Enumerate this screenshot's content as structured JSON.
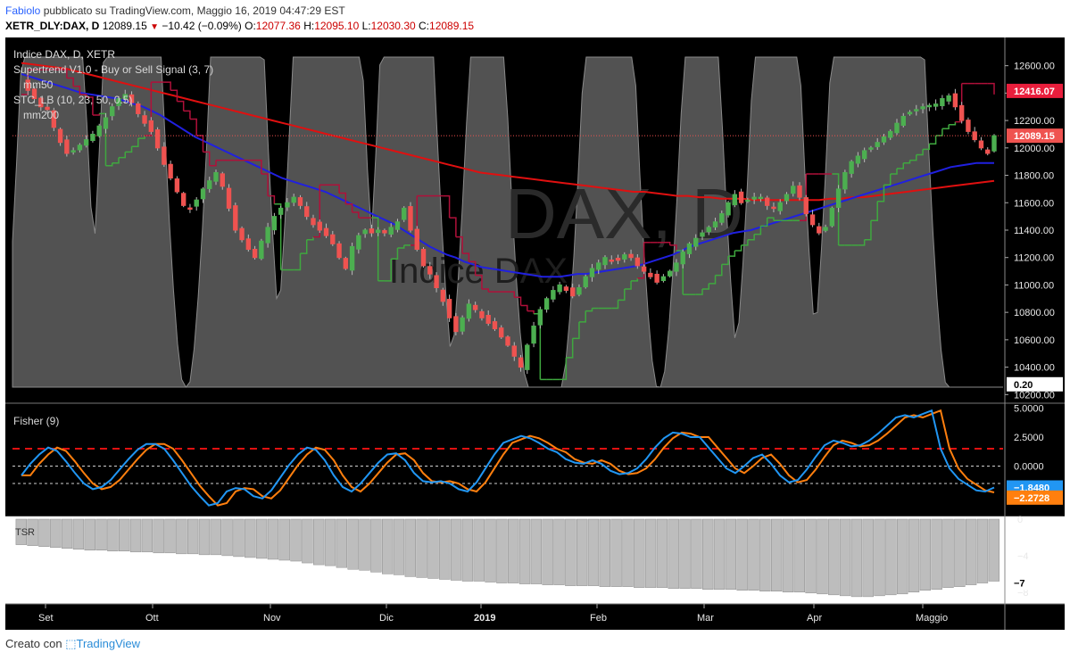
{
  "header": {
    "author": "Fabiolo",
    "published": "pubblicato su TradingView.com, Maggio 16, 2019 04:47:29 EST",
    "symbol": "XETR_DLY:DAX, D",
    "last": "12089.15",
    "change": "−10.42 (−0.09%)",
    "o_label": "O:",
    "o_value": "12077.36",
    "h_label": "H:",
    "h_value": "12095.10",
    "l_label": "L:",
    "l_value": "12030.30",
    "c_label": "C:",
    "c_value": "12089.15"
  },
  "legend": {
    "title": "Indice DAX, D, XETR",
    "supertrend": "Supertrend V1.0 - Buy or Sell Signal (3, 7)",
    "mm50": "mm50",
    "stc": "STC_LB (10, 23, 50, 0.5)",
    "mm200": "mm200",
    "fisher": "Fisher (9)",
    "tsr": "TSR"
  },
  "watermark": {
    "symbol": "DAX, D",
    "name": "Indice DAX"
  },
  "footer": {
    "created": "Creato con",
    "brand": "TradingView"
  },
  "colors": {
    "up": "#4caf50",
    "down": "#ef5350",
    "mm50": "#2020e0",
    "mm200": "#e01010",
    "supertrend_down": "#b0103a",
    "supertrend_up": "#3fa83f",
    "stc": "#5a5a5a",
    "fisher": "#2196f3",
    "fisher_trigger": "#ff7f0e",
    "tsr": "#bdbdbd"
  },
  "chart_data": [
    {
      "type": "candlestick",
      "title": "Indice DAX, D, XETR",
      "x_ticks": [
        "Set",
        "Ott",
        "Nov",
        "Dic",
        "2019",
        "Feb",
        "Mar",
        "Apr",
        "Maggio"
      ],
      "y_ticks": [
        12600,
        12400,
        12200,
        12000,
        11800,
        11600,
        11400,
        11200,
        11000,
        10800,
        10600,
        10400,
        10200
      ],
      "ylim": [
        10150,
        12780
      ],
      "last_price_label": "12089.15",
      "upper_label": "12416.07",
      "stc_value_label": "0.20",
      "ohlc_last": {
        "open": 12077.36,
        "high": 12095.1,
        "low": 12030.3,
        "close": 12089.15
      },
      "close_series": [
        12480,
        12420,
        12360,
        12300,
        12280,
        12150,
        12040,
        11960,
        11980,
        12020,
        12060,
        12100,
        12160,
        12220,
        12300,
        12360,
        12390,
        12330,
        12250,
        12180,
        12120,
        12000,
        11880,
        11780,
        11680,
        11580,
        11560,
        11620,
        11700,
        11760,
        11820,
        11720,
        11560,
        11400,
        11330,
        11260,
        11200,
        11320,
        11420,
        11500,
        11560,
        11600,
        11640,
        11580,
        11500,
        11440,
        11400,
        11360,
        11300,
        11200,
        11120,
        11280,
        11360,
        11400,
        11380,
        11400,
        11380,
        11420,
        11460,
        11560,
        11400,
        11260,
        11140,
        11080,
        10980,
        10880,
        10760,
        10660,
        10760,
        10860,
        10820,
        10760,
        10720,
        10680,
        10620,
        10560,
        10480,
        10400,
        10560,
        10700,
        10820,
        10900,
        10960,
        11000,
        10960,
        10920,
        10980,
        11060,
        11120,
        11160,
        11200,
        11180,
        11180,
        11220,
        11200,
        11140,
        11100,
        11060,
        11020,
        11060,
        11100,
        11160,
        11240,
        11300,
        11340,
        11380,
        11420,
        11460,
        11520,
        11600,
        11660,
        11600,
        11620,
        11640,
        11640,
        11580,
        11560,
        11600,
        11660,
        11720,
        11640,
        11520,
        11440,
        11380,
        11420,
        11560,
        11700,
        11820,
        11900,
        11940,
        11980,
        12000,
        12040,
        12080,
        12120,
        12180,
        12230,
        12260,
        12280,
        12300,
        12310,
        12320,
        12360,
        12380,
        12300,
        12200,
        12120,
        12060,
        12000,
        11960,
        12089.15
      ],
      "series": [
        {
          "name": "mm50",
          "values": [
            12540,
            12520,
            12500,
            12480,
            12460,
            12440,
            12420,
            12400,
            12390,
            12380,
            12370,
            12360,
            12340,
            12320,
            12300,
            12270,
            12240,
            12200,
            12160,
            12120,
            12080,
            12050,
            12020,
            11990,
            11960,
            11930,
            11900,
            11870,
            11840,
            11810,
            11780,
            11760,
            11740,
            11720,
            11700,
            11680,
            11650,
            11620,
            11590,
            11560,
            11530,
            11500,
            11470,
            11440,
            11400,
            11360,
            11320,
            11280,
            11250,
            11220,
            11200,
            11170,
            11150,
            11130,
            11120,
            11110,
            11100,
            11090,
            11080,
            11070,
            11060,
            11060,
            11060,
            11070,
            11080,
            11080,
            11090,
            11100,
            11110,
            11120,
            11130,
            11140,
            11160,
            11180,
            11200,
            11220,
            11250,
            11280,
            11300,
            11320,
            11340,
            11360,
            11380,
            11390,
            11400,
            11420,
            11440,
            11460,
            11480,
            11500,
            11520,
            11540,
            11560,
            11580,
            11600,
            11620,
            11640,
            11660,
            11680,
            11700,
            11720,
            11740,
            11760,
            11780,
            11800,
            11820,
            11840,
            11860,
            11870,
            11880,
            11890,
            11890,
            11890
          ]
        },
        {
          "name": "mm200",
          "values": [
            12620,
            12610,
            12600,
            12590,
            12580,
            12560,
            12540,
            12520,
            12500,
            12480,
            12460,
            12440,
            12420,
            12400,
            12380,
            12360,
            12340,
            12320,
            12300,
            12280,
            12260,
            12240,
            12220,
            12200,
            12180,
            12160,
            12140,
            12120,
            12100,
            12080,
            12060,
            12040,
            12020,
            12000,
            11980,
            11960,
            11940,
            11920,
            11900,
            11880,
            11860,
            11840,
            11820,
            11810,
            11800,
            11790,
            11780,
            11770,
            11760,
            11750,
            11740,
            11730,
            11720,
            11710,
            11700,
            11690,
            11680,
            11680,
            11670,
            11660,
            11650,
            11650,
            11640,
            11640,
            11630,
            11630,
            11630,
            11620,
            11620,
            11620,
            11620,
            11620,
            11620,
            11620,
            11630,
            11630,
            11640,
            11640,
            11650,
            11660,
            11670,
            11680,
            11690,
            11700,
            11710,
            11720,
            11730,
            11740,
            11750,
            11760
          ]
        }
      ]
    },
    {
      "type": "line",
      "title": "Fisher (9)",
      "y_ticks": [
        5.0,
        2.5,
        0.0
      ],
      "ylim": [
        -4.2,
        5.2
      ],
      "levels": [
        1.5,
        0.0,
        -1.5
      ],
      "series": [
        {
          "name": "Fisher",
          "last": -1.848,
          "last_label": "−1.8480",
          "values": [
            -0.8,
            0.2,
            1.0,
            1.6,
            1.3,
            0.4,
            -0.6,
            -1.5,
            -2.0,
            -1.8,
            -1.2,
            -0.3,
            0.6,
            1.4,
            1.9,
            1.9,
            1.5,
            0.5,
            -0.6,
            -1.7,
            -2.6,
            -3.4,
            -3.2,
            -2.2,
            -1.9,
            -2.0,
            -2.6,
            -2.8,
            -2.1,
            -1.0,
            0.1,
            1.0,
            1.6,
            1.4,
            0.5,
            -0.8,
            -1.8,
            -2.2,
            -1.5,
            -0.6,
            0.3,
            1.0,
            1.1,
            0.5,
            -0.6,
            -1.3,
            -1.4,
            -1.3,
            -1.5,
            -2.0,
            -2.2,
            -1.4,
            -0.2,
            1.0,
            2.0,
            2.3,
            2.6,
            2.4,
            2.0,
            1.5,
            1.2,
            0.6,
            0.3,
            0.2,
            0.5,
            0.2,
            -0.4,
            -0.7,
            -0.6,
            -0.2,
            0.6,
            1.6,
            2.4,
            2.9,
            2.8,
            2.5,
            2.5,
            1.6,
            0.7,
            -0.2,
            -0.6,
            0.0,
            0.7,
            1.0,
            0.2,
            -0.8,
            -1.4,
            -1.2,
            -0.3,
            0.8,
            1.8,
            2.2,
            2.0,
            1.7,
            1.8,
            2.2,
            2.8,
            3.5,
            4.2,
            4.4,
            4.2,
            4.5,
            4.8,
            1.5,
            -0.2,
            -1.1,
            -1.6,
            -2.1,
            -2.2,
            -1.848
          ]
        },
        {
          "name": "Trigger",
          "last": -2.2728,
          "last_label": "−2.2728"
        }
      ]
    },
    {
      "type": "bar",
      "title": "TSR",
      "y_ticks": [
        0,
        -4,
        -8
      ],
      "ylim": [
        -9,
        0
      ],
      "last_label": "−7",
      "values": [
        -2.8,
        -2.9,
        -3.0,
        -3.1,
        -3.2,
        -3.3,
        -3.4,
        -3.4,
        -3.5,
        -3.5,
        -3.6,
        -3.6,
        -3.7,
        -3.7,
        -3.8,
        -3.8,
        -3.9,
        -3.9,
        -4.0,
        -4.1,
        -4.2,
        -4.3,
        -4.4,
        -4.5,
        -4.6,
        -4.8,
        -5.0,
        -5.1,
        -5.3,
        -5.5,
        -5.6,
        -5.8,
        -6.0,
        -6.1,
        -6.3,
        -6.4,
        -6.5,
        -6.6,
        -6.7,
        -6.8,
        -6.8,
        -6.9,
        -7.0,
        -7.0,
        -7.1,
        -7.1,
        -7.2,
        -7.2,
        -7.3,
        -7.3,
        -7.3,
        -7.4,
        -7.4,
        -7.4,
        -7.5,
        -7.5,
        -7.5,
        -7.6,
        -7.6,
        -7.6,
        -7.7,
        -7.7,
        -7.7,
        -7.8,
        -7.8,
        -7.9,
        -7.9,
        -8.0,
        -8.0,
        -8.1,
        -8.2,
        -8.3,
        -8.4,
        -8.5,
        -8.5,
        -8.4,
        -8.3,
        -8.2,
        -8.0,
        -7.8,
        -7.7,
        -7.5,
        -7.4,
        -7.2,
        -7.0,
        -6.8
      ]
    }
  ]
}
